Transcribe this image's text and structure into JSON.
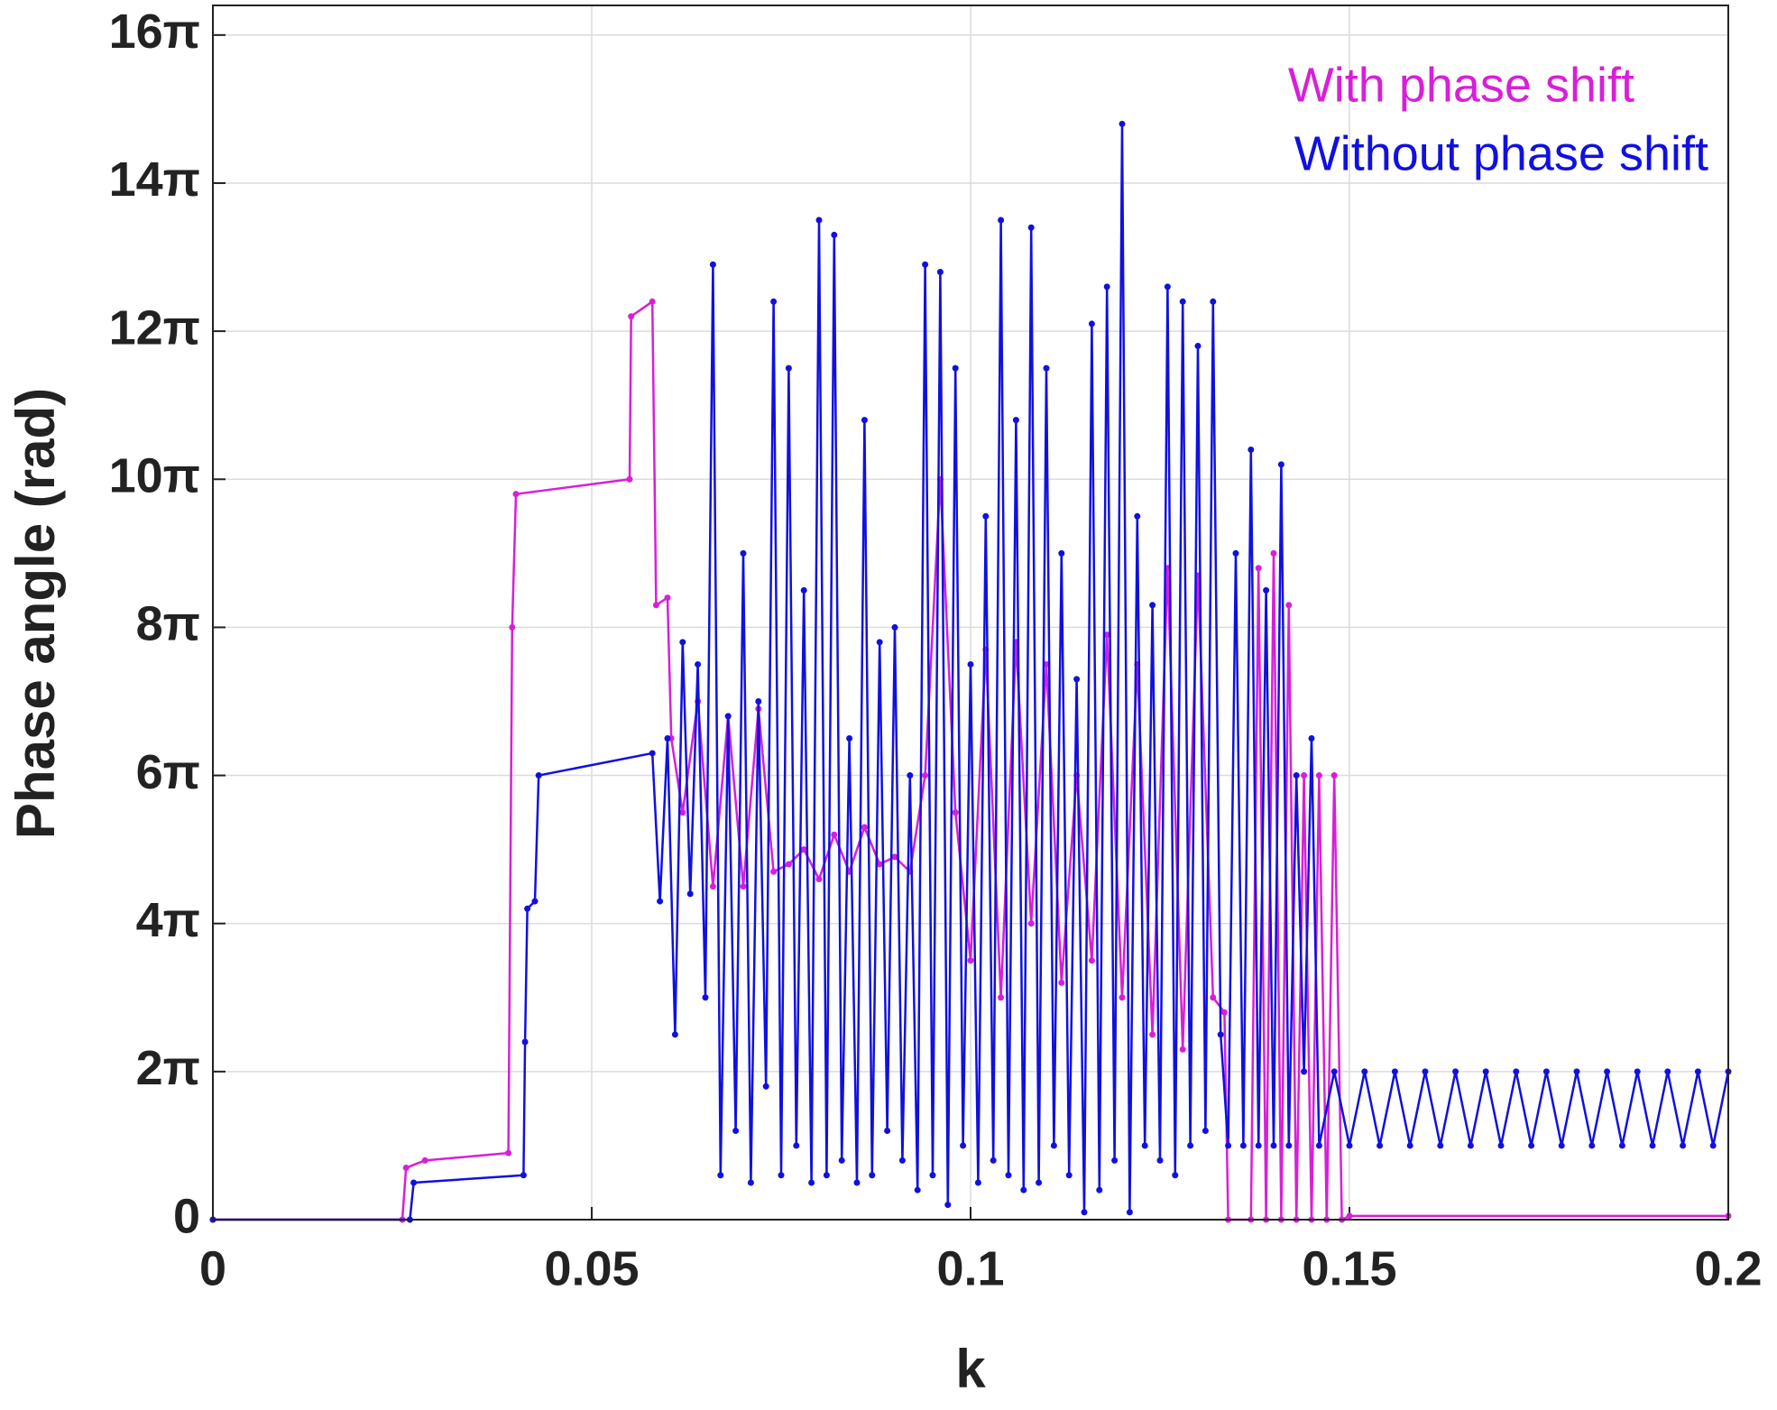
{
  "chart_data": {
    "type": "line",
    "xlabel": "k",
    "ylabel": "Phase angle (rad)",
    "xlim": [
      0,
      0.2
    ],
    "ylim": [
      0,
      16.4
    ],
    "xticks": [
      0,
      0.05,
      0.1,
      0.15,
      0.2
    ],
    "yticks": [
      0,
      {
        "value": 2,
        "label": "2π"
      },
      {
        "value": 4,
        "label": "4π"
      },
      {
        "value": 6,
        "label": "6π"
      },
      {
        "value": 8,
        "label": "8π"
      },
      {
        "value": 10,
        "label": "10π"
      },
      {
        "value": 12,
        "label": "12π"
      },
      {
        "value": 14,
        "label": "14π"
      },
      {
        "value": 16,
        "label": "16π"
      }
    ],
    "grid": true,
    "legend": "upper right",
    "series": [
      {
        "name": "With phase shift",
        "color": "#d81fd8",
        "x": [
          0,
          0.025,
          0.0255,
          0.028,
          0.039,
          0.0395,
          0.04,
          0.055,
          0.0552,
          0.058,
          0.0585,
          0.06,
          0.0605,
          0.062,
          0.064,
          0.066,
          0.068,
          0.07,
          0.072,
          0.074,
          0.076,
          0.078,
          0.08,
          0.082,
          0.084,
          0.086,
          0.088,
          0.09,
          0.092,
          0.094,
          0.096,
          0.098,
          0.1,
          0.102,
          0.104,
          0.106,
          0.108,
          0.11,
          0.112,
          0.114,
          0.116,
          0.118,
          0.12,
          0.122,
          0.124,
          0.126,
          0.128,
          0.13,
          0.132,
          0.1335,
          0.134,
          0.137,
          0.138,
          0.139,
          0.14,
          0.141,
          0.142,
          0.143,
          0.144,
          0.145,
          0.146,
          0.147,
          0.148,
          0.149,
          0.15,
          0.2
        ],
        "values": [
          0,
          0,
          0.7,
          0.8,
          0.9,
          8,
          9.8,
          10,
          12.2,
          12.4,
          8.3,
          8.4,
          6.5,
          5.5,
          7,
          4.5,
          6.8,
          4.5,
          6.9,
          4.7,
          4.8,
          5,
          4.6,
          5.2,
          4.7,
          5.3,
          4.8,
          4.9,
          4.7,
          6,
          10,
          5.5,
          3.5,
          7.7,
          3,
          7.8,
          4,
          7.5,
          3.2,
          6,
          3.5,
          7.9,
          3,
          7.5,
          2.5,
          8.8,
          2.3,
          8.7,
          3,
          2.8,
          0,
          0,
          8.8,
          0,
          9,
          0,
          8.3,
          0,
          6,
          0,
          6,
          0,
          6,
          0,
          0.05,
          0.05
        ]
      },
      {
        "name": "Without phase shift",
        "color": "#1010e0",
        "x": [
          0,
          0.026,
          0.0265,
          0.041,
          0.0412,
          0.0415,
          0.0425,
          0.043,
          0.058,
          0.059,
          0.06,
          0.061,
          0.062,
          0.063,
          0.064,
          0.065,
          0.066,
          0.067,
          0.068,
          0.069,
          0.07,
          0.071,
          0.072,
          0.073,
          0.074,
          0.075,
          0.076,
          0.077,
          0.078,
          0.079,
          0.08,
          0.081,
          0.082,
          0.083,
          0.084,
          0.085,
          0.086,
          0.087,
          0.088,
          0.089,
          0.09,
          0.091,
          0.092,
          0.093,
          0.094,
          0.095,
          0.096,
          0.097,
          0.098,
          0.099,
          0.1,
          0.101,
          0.102,
          0.103,
          0.104,
          0.105,
          0.106,
          0.107,
          0.108,
          0.109,
          0.11,
          0.111,
          0.112,
          0.113,
          0.114,
          0.115,
          0.116,
          0.117,
          0.118,
          0.119,
          0.12,
          0.121,
          0.122,
          0.123,
          0.124,
          0.125,
          0.126,
          0.127,
          0.128,
          0.129,
          0.13,
          0.131,
          0.132,
          0.133,
          0.134,
          0.135,
          0.136,
          0.137,
          0.138,
          0.139,
          0.14,
          0.141,
          0.142,
          0.143,
          0.144,
          0.145,
          0.146,
          0.148,
          0.15,
          0.152,
          0.154,
          0.156,
          0.158,
          0.16,
          0.162,
          0.164,
          0.166,
          0.168,
          0.17,
          0.172,
          0.174,
          0.176,
          0.178,
          0.18,
          0.182,
          0.184,
          0.186,
          0.188,
          0.19,
          0.192,
          0.194,
          0.196,
          0.198,
          0.2
        ],
        "values": [
          0,
          0,
          0.5,
          0.6,
          2.4,
          4.2,
          4.3,
          6.0,
          6.3,
          4.3,
          6.5,
          2.5,
          7.8,
          4.4,
          7.5,
          3.0,
          12.9,
          0.6,
          6.8,
          1.2,
          9.0,
          0.5,
          7.0,
          1.8,
          12.4,
          0.6,
          11.5,
          1.0,
          8.5,
          0.5,
          13.5,
          0.6,
          13.3,
          0.8,
          6.5,
          0.5,
          10.8,
          0.6,
          7.8,
          1.2,
          8.0,
          0.8,
          6.0,
          0.4,
          12.9,
          0.6,
          12.8,
          0.2,
          11.5,
          1.0,
          7.5,
          0.5,
          9.5,
          0.8,
          13.5,
          0.6,
          10.8,
          0.4,
          13.4,
          0.5,
          11.5,
          1.0,
          9.0,
          0.6,
          7.3,
          0.1,
          12.1,
          0.4,
          12.6,
          0.8,
          14.8,
          0.1,
          9.5,
          1.0,
          8.3,
          0.8,
          12.6,
          0.6,
          12.4,
          1.0,
          11.8,
          1.2,
          12.4,
          2.5,
          1.0,
          9,
          1,
          10.4,
          1,
          8.5,
          1,
          10.2,
          1,
          6,
          2,
          6.5,
          1,
          2,
          1,
          2,
          1,
          2,
          1,
          2,
          1,
          2,
          1,
          2,
          1,
          2,
          1,
          2,
          1,
          2,
          1,
          2,
          1,
          2,
          1,
          2,
          1,
          2,
          1,
          2
        ]
      }
    ]
  }
}
